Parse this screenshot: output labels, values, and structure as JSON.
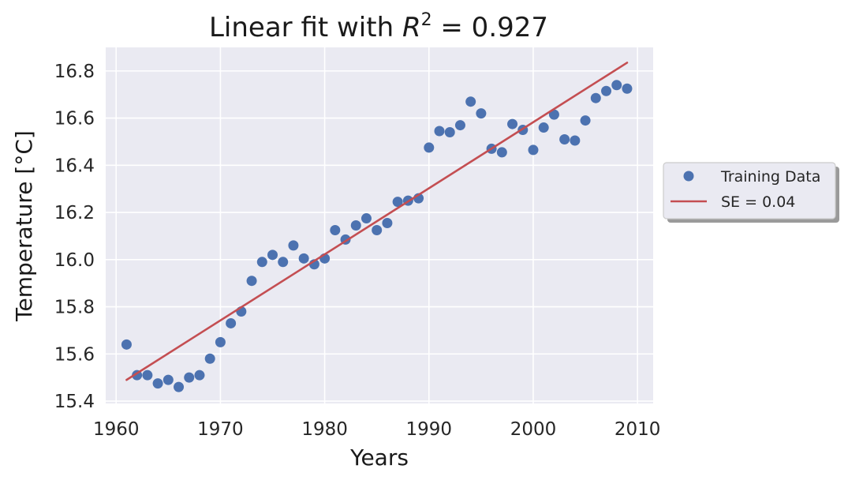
{
  "chart_data": {
    "type": "scatter",
    "title_prefix": "Linear fit with ",
    "title_var": "R",
    "title_sup": "2",
    "title_value": " = 0.927",
    "xlabel": "Years",
    "ylabel": "Temperature [°C]",
    "xlim": [
      1959,
      2011.5
    ],
    "ylim": [
      15.39,
      16.9
    ],
    "xticks": [
      1960,
      1970,
      1980,
      1990,
      2000,
      2010
    ],
    "xtick_labels": [
      "1960",
      "1970",
      "1980",
      "1990",
      "2000",
      "2010"
    ],
    "yticks": [
      15.4,
      15.6,
      15.8,
      16.0,
      16.2,
      16.4,
      16.6,
      16.8
    ],
    "ytick_labels": [
      "15.4",
      "15.6",
      "15.8",
      "16.0",
      "16.2",
      "16.4",
      "16.6",
      "16.8"
    ],
    "grid": true,
    "legend_position": "outside right",
    "series": [
      {
        "name": "Training Data",
        "kind": "scatter",
        "color": "#4c72b0",
        "x": [
          1961,
          1962,
          1963,
          1964,
          1965,
          1966,
          1967,
          1968,
          1969,
          1970,
          1971,
          1972,
          1973,
          1974,
          1975,
          1976,
          1977,
          1978,
          1979,
          1980,
          1981,
          1982,
          1983,
          1984,
          1985,
          1986,
          1987,
          1988,
          1989,
          1990,
          1991,
          1992,
          1993,
          1994,
          1995,
          1996,
          1997,
          1998,
          1999,
          2000,
          2001,
          2002,
          2003,
          2004,
          2005,
          2006,
          2007,
          2008,
          2009
        ],
        "y": [
          15.64,
          15.51,
          15.51,
          15.475,
          15.49,
          15.46,
          15.5,
          15.51,
          15.58,
          15.65,
          15.73,
          15.78,
          15.91,
          15.99,
          16.02,
          15.99,
          16.06,
          16.005,
          15.98,
          16.005,
          16.125,
          16.085,
          16.145,
          16.175,
          16.125,
          16.155,
          16.245,
          16.25,
          16.26,
          16.475,
          16.545,
          16.54,
          16.57,
          16.67,
          16.62,
          16.47,
          16.455,
          16.575,
          16.55,
          16.465,
          16.56,
          16.615,
          16.51,
          16.505,
          16.59,
          16.685,
          16.715,
          16.74,
          16.725
        ]
      },
      {
        "name": "SE = 0.04",
        "kind": "line",
        "color": "#c44e52",
        "x": [
          1961,
          2009
        ],
        "y": [
          15.49,
          16.835
        ]
      }
    ]
  }
}
